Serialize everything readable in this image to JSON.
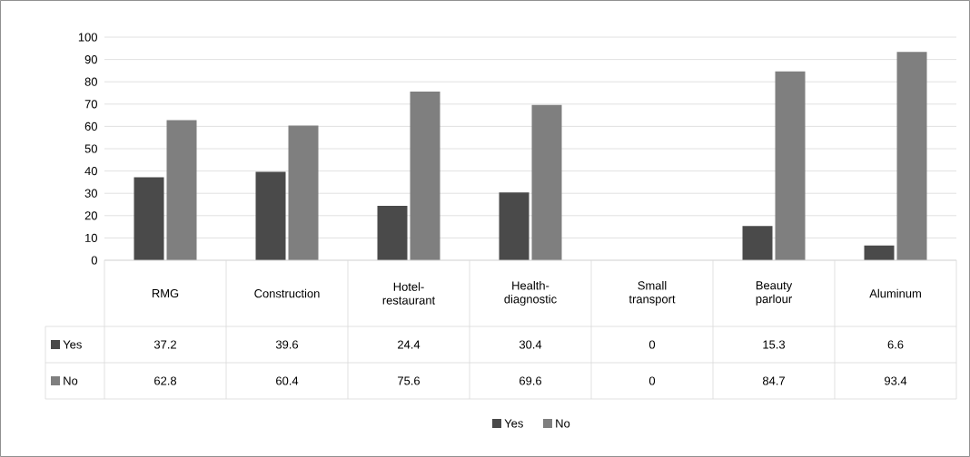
{
  "chart_data": {
    "type": "bar",
    "categories": [
      "RMG",
      "Construction",
      "Hotel-restaurant",
      "Health-diagnostic",
      "Small transport",
      "Beauty parlour",
      "Aluminum"
    ],
    "series": [
      {
        "name": "Yes",
        "color": "#4a4a4a",
        "values": [
          37.2,
          39.6,
          24.4,
          30.4,
          0,
          15.3,
          6.6
        ]
      },
      {
        "name": "No",
        "color": "#7f7f7f",
        "values": [
          62.8,
          60.4,
          75.6,
          69.6,
          0,
          84.7,
          93.4
        ]
      }
    ],
    "ylim": [
      0,
      100
    ],
    "yticks": [
      0,
      10,
      20,
      30,
      40,
      50,
      60,
      70,
      80,
      90,
      100
    ],
    "grid": "y",
    "legend": "bottom",
    "data_labels": true
  }
}
